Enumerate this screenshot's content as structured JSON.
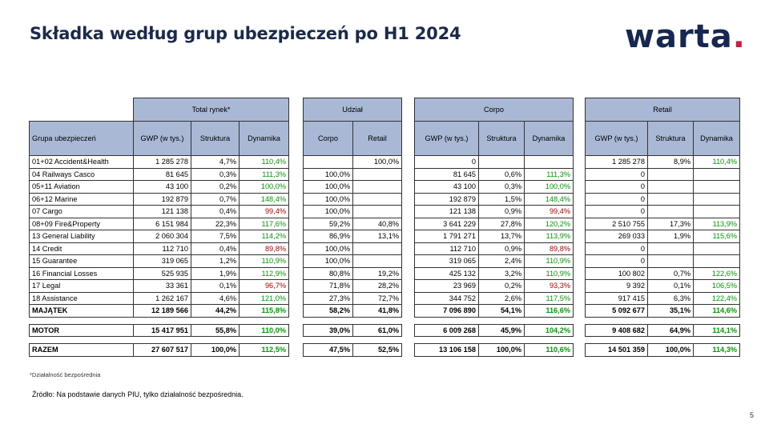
{
  "title": "Składka według grup ubezpieczeń po H1 2024",
  "logo": {
    "text": "warta",
    "dot": "."
  },
  "headers": {
    "total": "Total rynek*",
    "udzial": "Udział",
    "corpo": "Corpo",
    "retail": "Retail",
    "grupa": "Grupa ubezpieczeń",
    "gwp": "GWP (w tys.)",
    "struktura": "Struktura",
    "dynamika": "Dynamika",
    "corpo_col": "Corpo",
    "retail_col": "Retail"
  },
  "rows": [
    {
      "name": "01+02 Accident&Health",
      "t_gwp": "1 285 278",
      "t_str": "4,7%",
      "t_dyn": "110,4%",
      "t_dyn_c": "green",
      "u_c": "",
      "u_r": "100,0%",
      "c_gwp": "0",
      "c_str": "",
      "c_dyn": "",
      "c_dyn_c": "",
      "r_gwp": "1 285 278",
      "r_str": "8,9%",
      "r_dyn": "110,4%",
      "r_dyn_c": "green"
    },
    {
      "name": "04 Railways Casco",
      "t_gwp": "81 645",
      "t_str": "0,3%",
      "t_dyn": "111,3%",
      "t_dyn_c": "green",
      "u_c": "100,0%",
      "u_r": "",
      "c_gwp": "81 645",
      "c_str": "0,6%",
      "c_dyn": "111,3%",
      "c_dyn_c": "green",
      "r_gwp": "0",
      "r_str": "",
      "r_dyn": "",
      "r_dyn_c": ""
    },
    {
      "name": "05+11 Aviation",
      "t_gwp": "43 100",
      "t_str": "0,2%",
      "t_dyn": "100,0%",
      "t_dyn_c": "green",
      "u_c": "100,0%",
      "u_r": "",
      "c_gwp": "43 100",
      "c_str": "0,3%",
      "c_dyn": "100,0%",
      "c_dyn_c": "green",
      "r_gwp": "0",
      "r_str": "",
      "r_dyn": "",
      "r_dyn_c": ""
    },
    {
      "name": "06+12 Marine",
      "t_gwp": "192 879",
      "t_str": "0,7%",
      "t_dyn": "148,4%",
      "t_dyn_c": "green",
      "u_c": "100,0%",
      "u_r": "",
      "c_gwp": "192 879",
      "c_str": "1,5%",
      "c_dyn": "148,4%",
      "c_dyn_c": "green",
      "r_gwp": "0",
      "r_str": "",
      "r_dyn": "",
      "r_dyn_c": ""
    },
    {
      "name": "07 Cargo",
      "t_gwp": "121 138",
      "t_str": "0,4%",
      "t_dyn": "99,4%",
      "t_dyn_c": "red",
      "u_c": "100,0%",
      "u_r": "",
      "c_gwp": "121 138",
      "c_str": "0,9%",
      "c_dyn": "99,4%",
      "c_dyn_c": "red",
      "r_gwp": "0",
      "r_str": "",
      "r_dyn": "",
      "r_dyn_c": ""
    },
    {
      "name": "08+09 Fire&Property",
      "t_gwp": "6 151 984",
      "t_str": "22,3%",
      "t_dyn": "117,6%",
      "t_dyn_c": "green",
      "u_c": "59,2%",
      "u_r": "40,8%",
      "c_gwp": "3 641 229",
      "c_str": "27,8%",
      "c_dyn": "120,2%",
      "c_dyn_c": "green",
      "r_gwp": "2 510 755",
      "r_str": "17,3%",
      "r_dyn": "113,9%",
      "r_dyn_c": "green"
    },
    {
      "name": "13 General Liability",
      "t_gwp": "2 060 304",
      "t_str": "7,5%",
      "t_dyn": "114,2%",
      "t_dyn_c": "green",
      "u_c": "86,9%",
      "u_r": "13,1%",
      "c_gwp": "1 791 271",
      "c_str": "13,7%",
      "c_dyn": "113,9%",
      "c_dyn_c": "green",
      "r_gwp": "269 033",
      "r_str": "1,9%",
      "r_dyn": "115,6%",
      "r_dyn_c": "green"
    },
    {
      "name": "14 Credit",
      "t_gwp": "112 710",
      "t_str": "0,4%",
      "t_dyn": "89,8%",
      "t_dyn_c": "red",
      "u_c": "100,0%",
      "u_r": "",
      "c_gwp": "112 710",
      "c_str": "0,9%",
      "c_dyn": "89,8%",
      "c_dyn_c": "red",
      "r_gwp": "0",
      "r_str": "",
      "r_dyn": "",
      "r_dyn_c": ""
    },
    {
      "name": "15 Guarantee",
      "t_gwp": "319 065",
      "t_str": "1,2%",
      "t_dyn": "110,9%",
      "t_dyn_c": "green",
      "u_c": "100,0%",
      "u_r": "",
      "c_gwp": "319 065",
      "c_str": "2,4%",
      "c_dyn": "110,9%",
      "c_dyn_c": "green",
      "r_gwp": "0",
      "r_str": "",
      "r_dyn": "",
      "r_dyn_c": ""
    },
    {
      "name": "16 Financial Losses",
      "t_gwp": "525 935",
      "t_str": "1,9%",
      "t_dyn": "112,9%",
      "t_dyn_c": "green",
      "u_c": "80,8%",
      "u_r": "19,2%",
      "c_gwp": "425 132",
      "c_str": "3,2%",
      "c_dyn": "110,9%",
      "c_dyn_c": "green",
      "r_gwp": "100 802",
      "r_str": "0,7%",
      "r_dyn": "122,6%",
      "r_dyn_c": "green"
    },
    {
      "name": "17 Legal",
      "t_gwp": "33 361",
      "t_str": "0,1%",
      "t_dyn": "96,7%",
      "t_dyn_c": "red",
      "u_c": "71,8%",
      "u_r": "28,2%",
      "c_gwp": "23 969",
      "c_str": "0,2%",
      "c_dyn": "93,3%",
      "c_dyn_c": "red",
      "r_gwp": "9 392",
      "r_str": "0,1%",
      "r_dyn": "106,5%",
      "r_dyn_c": "green"
    },
    {
      "name": "18 Assistance",
      "t_gwp": "1 262 167",
      "t_str": "4,6%",
      "t_dyn": "121,0%",
      "t_dyn_c": "green",
      "u_c": "27,3%",
      "u_r": "72,7%",
      "c_gwp": "344 752",
      "c_str": "2,6%",
      "c_dyn": "117,5%",
      "c_dyn_c": "green",
      "r_gwp": "917 415",
      "r_str": "6,3%",
      "r_dyn": "122,4%",
      "r_dyn_c": "green"
    },
    {
      "name": "MAJĄTEK",
      "t_gwp": "12 189 566",
      "t_str": "44,2%",
      "t_dyn": "115,8%",
      "t_dyn_c": "green",
      "u_c": "58,2%",
      "u_r": "41,8%",
      "c_gwp": "7 096 890",
      "c_str": "54,1%",
      "c_dyn": "116,6%",
      "c_dyn_c": "green",
      "r_gwp": "5 092 677",
      "r_str": "35,1%",
      "r_dyn": "114,6%",
      "r_dyn_c": "green",
      "bold": true
    }
  ],
  "motor": {
    "name": "MOTOR",
    "t_gwp": "15 417 951",
    "t_str": "55,8%",
    "t_dyn": "110,0%",
    "t_dyn_c": "green",
    "u_c": "39,0%",
    "u_r": "61,0%",
    "c_gwp": "6 009 268",
    "c_str": "45,9%",
    "c_dyn": "104,2%",
    "c_dyn_c": "green",
    "r_gwp": "9 408 682",
    "r_str": "64,9%",
    "r_dyn": "114,1%",
    "r_dyn_c": "green"
  },
  "razem": {
    "name": "RAZEM",
    "t_gwp": "27 607 517",
    "t_str": "100,0%",
    "t_dyn": "112,5%",
    "t_dyn_c": "green",
    "u_c": "47,5%",
    "u_r": "52,5%",
    "c_gwp": "13 106 158",
    "c_str": "100,0%",
    "c_dyn": "110,6%",
    "c_dyn_c": "green",
    "r_gwp": "14 501 359",
    "r_str": "100,0%",
    "r_dyn": "114,3%",
    "r_dyn_c": "green"
  },
  "footnote": "*Działalność bezpośrednia",
  "source": "Źródło: Na podstawie danych PIU, tylko działalność bezpośrednia.",
  "page_number": "5"
}
